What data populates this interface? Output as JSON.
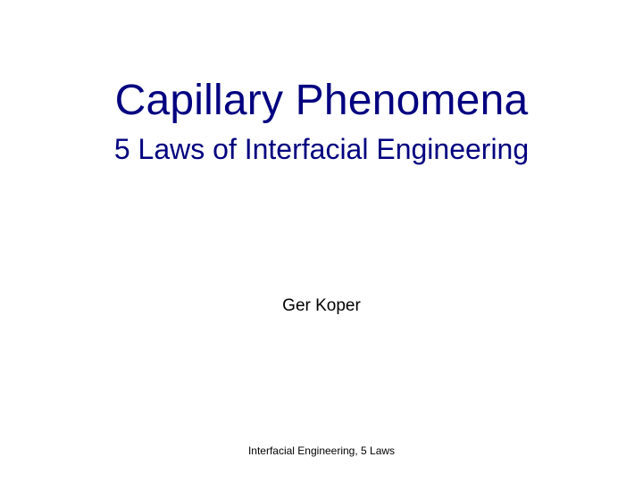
{
  "slide": {
    "title": "Capillary Phenomena",
    "subtitle": "5 Laws of Interfacial Engineering",
    "author": "Ger Koper",
    "footer": "Interfacial Engineering, 5 Laws"
  },
  "style": {
    "title_color": "#000080",
    "subtitle_color": "#000080",
    "author_color": "#000000",
    "footer_color": "#000000",
    "background_color": "#ffffff",
    "title_fontsize": 48,
    "subtitle_fontsize": 32,
    "author_fontsize": 19,
    "footer_fontsize": 12,
    "font_family": "Arial"
  }
}
